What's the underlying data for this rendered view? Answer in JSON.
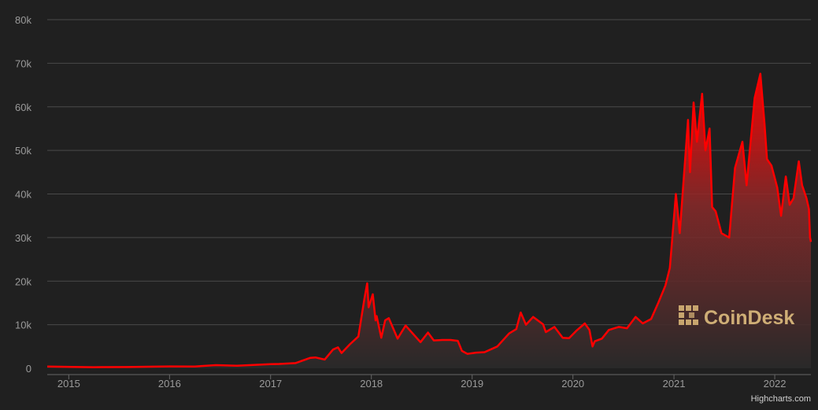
{
  "watermark": {
    "text": "CoinDesk",
    "color": "#c8a56e"
  },
  "credits": "Highcharts.com",
  "colors": {
    "background": "#202020",
    "line": "#ff0000",
    "grid": "#4a4a4a",
    "axis_text": "#9a9a9a"
  },
  "chart_data": {
    "type": "area",
    "title": "",
    "xlabel": "",
    "ylabel": "",
    "xlim": [
      "2014-10-15",
      "2022-05-12"
    ],
    "ylim": [
      0,
      80000
    ],
    "grid": true,
    "legend": "none",
    "y_ticks": [
      0,
      10000,
      20000,
      30000,
      40000,
      50000,
      60000,
      70000,
      80000
    ],
    "y_tick_labels": [
      "0",
      "10k",
      "20k",
      "30k",
      "40k",
      "50k",
      "60k",
      "70k",
      "80k"
    ],
    "x_tick_labels": [
      "2015",
      "2016",
      "2017",
      "2018",
      "2019",
      "2020",
      "2021",
      "2022"
    ],
    "series": [
      {
        "color": "#ff0000",
        "x": [
          "2014-10-15",
          "2015-01-15",
          "2015-04-01",
          "2015-08-01",
          "2015-11-05",
          "2016-01-01",
          "2016-04-01",
          "2016-06-17",
          "2016-09-01",
          "2016-12-31",
          "2017-02-01",
          "2017-04-01",
          "2017-05-25",
          "2017-06-12",
          "2017-07-16",
          "2017-08-15",
          "2017-09-02",
          "2017-09-15",
          "2017-10-15",
          "2017-11-15",
          "2017-12-07",
          "2017-12-17",
          "2017-12-22",
          "2018-01-06",
          "2018-01-16",
          "2018-01-20",
          "2018-02-06",
          "2018-02-20",
          "2018-03-05",
          "2018-04-06",
          "2018-05-05",
          "2018-06-28",
          "2018-07-25",
          "2018-08-15",
          "2018-09-15",
          "2018-10-15",
          "2018-11-10",
          "2018-11-25",
          "2018-12-15",
          "2019-01-15",
          "2019-02-15",
          "2019-04-02",
          "2019-05-15",
          "2019-06-10",
          "2019-06-26",
          "2019-07-15",
          "2019-08-10",
          "2019-09-15",
          "2019-09-25",
          "2019-10-26",
          "2019-11-25",
          "2019-12-18",
          "2020-01-15",
          "2020-02-13",
          "2020-03-01",
          "2020-03-12",
          "2020-03-20",
          "2020-04-15",
          "2020-05-10",
          "2020-06-15",
          "2020-07-15",
          "2020-08-15",
          "2020-09-10",
          "2020-10-10",
          "2020-11-05",
          "2020-12-01",
          "2020-12-17",
          "2021-01-08",
          "2021-01-22",
          "2021-02-21",
          "2021-02-28",
          "2021-03-13",
          "2021-03-25",
          "2021-04-13",
          "2021-04-25",
          "2021-05-10",
          "2021-05-19",
          "2021-06-01",
          "2021-06-22",
          "2021-07-20",
          "2021-08-10",
          "2021-09-06",
          "2021-09-21",
          "2021-10-20",
          "2021-11-10",
          "2021-11-25",
          "2021-12-04",
          "2021-12-20",
          "2022-01-10",
          "2022-01-24",
          "2022-02-10",
          "2022-02-24",
          "2022-03-10",
          "2022-03-29",
          "2022-04-10",
          "2022-04-26",
          "2022-05-05",
          "2022-05-09",
          "2022-05-12"
        ],
        "values": [
          400,
          300,
          250,
          280,
          380,
          430,
          420,
          720,
          600,
          960,
          1000,
          1200,
          2400,
          2500,
          2000,
          4300,
          4800,
          3500,
          5500,
          7300,
          16000,
          19500,
          14000,
          17000,
          11000,
          12000,
          7000,
          11000,
          11500,
          6800,
          9800,
          6000,
          8200,
          6400,
          6500,
          6500,
          6300,
          4000,
          3300,
          3600,
          3700,
          5000,
          8000,
          9000,
          12800,
          10000,
          11800,
          10100,
          8300,
          9500,
          7000,
          6900,
          8700,
          10300,
          8800,
          5000,
          6200,
          6800,
          8800,
          9500,
          9200,
          11800,
          10300,
          11300,
          15000,
          19000,
          23000,
          40000,
          31000,
          57000,
          45000,
          61000,
          52000,
          63000,
          50000,
          55000,
          37000,
          36000,
          31000,
          30000,
          46000,
          52000,
          42000,
          62000,
          67600,
          56000,
          48000,
          46500,
          41500,
          35000,
          44000,
          37500,
          39000,
          47500,
          42000,
          39000,
          36500,
          30000,
          29000
        ]
      }
    ]
  }
}
